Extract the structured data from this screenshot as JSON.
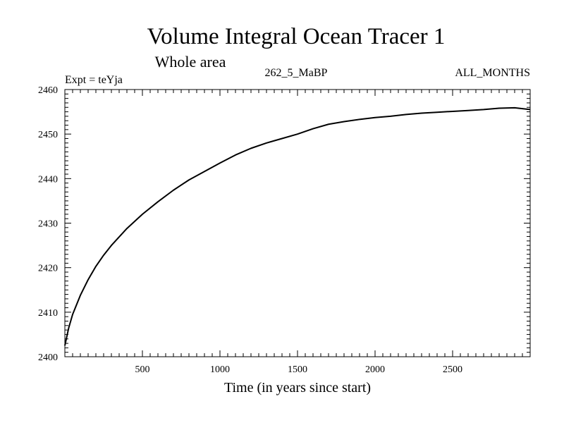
{
  "header": {
    "title": "Volume Integral Ocean Tracer 1",
    "subtitle": "Whole area",
    "expt": "Expt = teYja",
    "period": "262_5_MaBP",
    "months": "ALL_MONTHS"
  },
  "chart_data": {
    "type": "line",
    "title": "Volume Integral Ocean Tracer 1",
    "subtitle": "Whole area",
    "xlabel": "Time (in years since start)",
    "ylabel": "",
    "xlim": [
      0,
      3000
    ],
    "ylim": [
      2400,
      2460
    ],
    "x_ticks": [
      500,
      1000,
      1500,
      2000,
      2500
    ],
    "y_ticks": [
      2400,
      2410,
      2420,
      2430,
      2440,
      2450,
      2460
    ],
    "grid": false,
    "series": [
      {
        "color": "#000000",
        "x": [
          0,
          25,
          50,
          100,
          150,
          200,
          250,
          300,
          400,
          500,
          600,
          700,
          800,
          900,
          1000,
          1100,
          1200,
          1300,
          1400,
          1500,
          1600,
          1700,
          1800,
          1900,
          2000,
          2100,
          2200,
          2300,
          2400,
          2500,
          2600,
          2700,
          2800,
          2900,
          3000
        ],
        "values": [
          2402.5,
          2406.5,
          2409.5,
          2413.8,
          2417.3,
          2420.3,
          2422.8,
          2425.0,
          2428.8,
          2432.0,
          2434.8,
          2437.4,
          2439.7,
          2441.6,
          2443.5,
          2445.3,
          2446.8,
          2448.0,
          2449.0,
          2450.0,
          2451.2,
          2452.2,
          2452.8,
          2453.3,
          2453.7,
          2454.0,
          2454.4,
          2454.7,
          2454.9,
          2455.1,
          2455.3,
          2455.5,
          2455.8,
          2455.9,
          2455.5
        ]
      }
    ]
  }
}
